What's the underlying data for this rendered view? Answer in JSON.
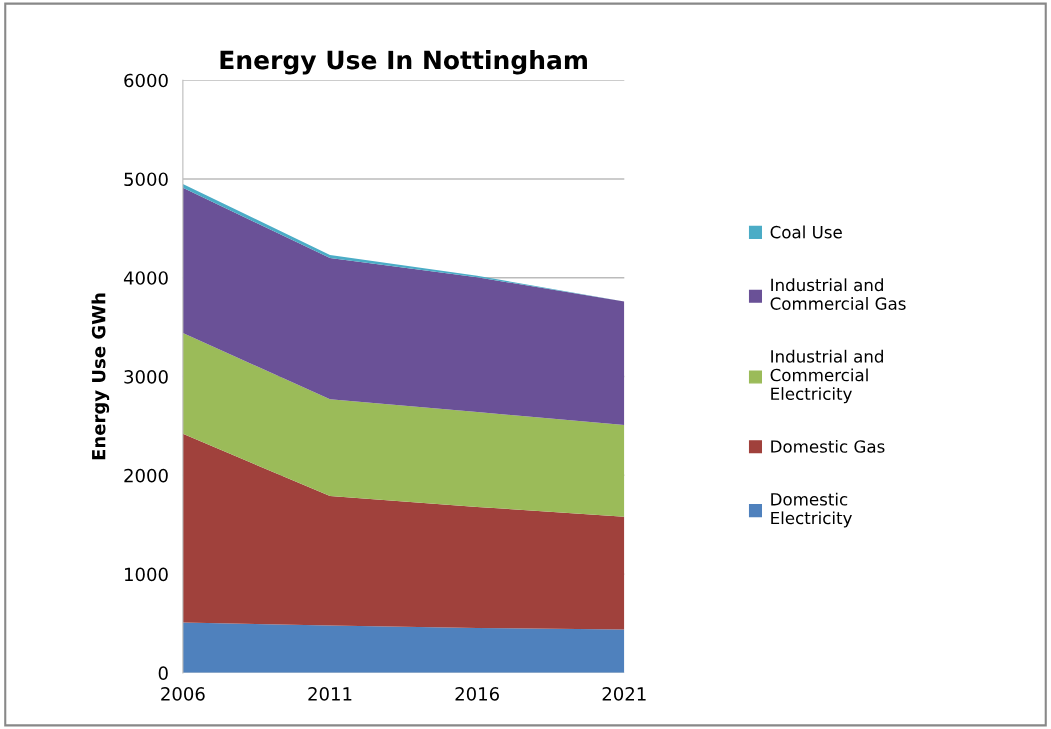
{
  "chart_data": {
    "type": "area",
    "title": "Energy Use In Nottingham",
    "ylabel": "Energy Use GWh",
    "x": [
      2006,
      2011,
      2016,
      2021
    ],
    "xlim": [
      2006,
      2021
    ],
    "xticks": [
      2006,
      2011,
      2016,
      2021
    ],
    "ylim": [
      0,
      6000
    ],
    "yticks": [
      0,
      1000,
      2000,
      3000,
      4000,
      5000,
      6000
    ],
    "stacked": true,
    "grid": "y",
    "legend": "right",
    "series": [
      {
        "name": "Domestic\nElectricity",
        "color": "#4f81bd",
        "values": [
          510,
          480,
          455,
          440
        ]
      },
      {
        "name": "Domestic Gas",
        "color": "#a0413c",
        "values": [
          1910,
          1310,
          1225,
          1140
        ]
      },
      {
        "name": "Industrial and\nCommercial\nElectricity",
        "color": "#9bbb59",
        "values": [
          1020,
          980,
          960,
          930
        ]
      },
      {
        "name": "Industrial and\nCommercial Gas",
        "color": "#6a5197",
        "values": [
          1470,
          1430,
          1365,
          1250
        ]
      },
      {
        "name": "Coal Use",
        "color": "#4bacc6",
        "values": [
          40,
          30,
          15,
          0
        ]
      }
    ]
  }
}
